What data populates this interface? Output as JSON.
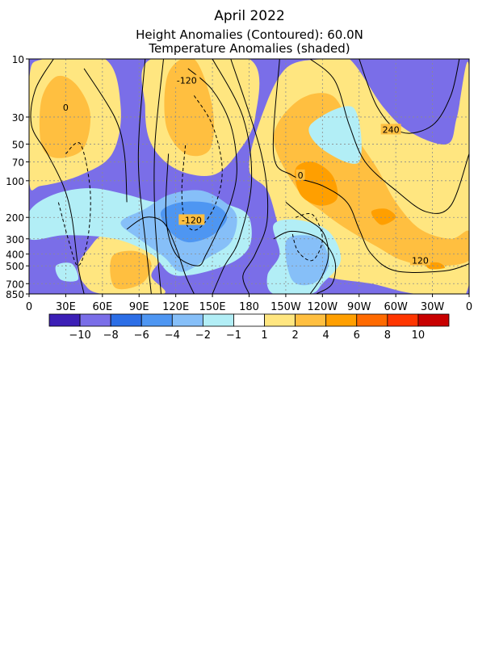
{
  "chart_data": {
    "type": "heatmap",
    "title": "April 2022",
    "subtitle": "Height Anomalies (Contoured): 60.0N",
    "subtitle2": "Temperature Anomalies (shaded)",
    "x_ticks": [
      "0",
      "30E",
      "60E",
      "90E",
      "120E",
      "150E",
      "180",
      "150W",
      "120W",
      "90W",
      "60W",
      "30W",
      "0"
    ],
    "x_range_deg_east": [
      0,
      360
    ],
    "y_ticks": [
      "10",
      "30",
      "50",
      "70",
      "100",
      "200",
      "300",
      "400",
      "500",
      "700",
      "850"
    ],
    "y_tick_values_hpa": [
      10,
      30,
      50,
      70,
      100,
      200,
      300,
      400,
      500,
      700,
      850
    ],
    "y_range_hpa": [
      10,
      850
    ],
    "y_scale": "log",
    "grid": true,
    "colorbar": {
      "labels": [
        "-10",
        "-8",
        "-6",
        "-4",
        "-2",
        "-1",
        "1",
        "2",
        "4",
        "6",
        "8",
        "10"
      ],
      "colors": [
        "#3c1fb6",
        "#7a6ee8",
        "#2c6ee6",
        "#4e96f2",
        "#86bff8",
        "#b2eef6",
        "#ffffff",
        "#ffe680",
        "#ffbf40",
        "#ff9f00",
        "#ff6a00",
        "#ff3600",
        "#c80000"
      ]
    },
    "contour_labels": [
      {
        "text": "0",
        "lon": 30,
        "p": 25
      },
      {
        "text": "-120",
        "lon": 129,
        "p": 15
      },
      {
        "text": "240",
        "lon": 296,
        "p": 38
      },
      {
        "text": "0",
        "lon": 222,
        "p": 90
      },
      {
        "text": "-120",
        "lon": 133,
        "p": 210
      },
      {
        "text": "120",
        "lon": 320,
        "p": 450
      }
    ],
    "temperature_regions": [
      {
        "category": 1,
        "points": [
          [
            0,
            10
          ],
          [
            360,
            10
          ],
          [
            360,
            850
          ],
          [
            0,
            850
          ]
        ]
      },
      {
        "category": 7,
        "points": [
          [
            0,
            15
          ],
          [
            12,
            10
          ],
          [
            62,
            10
          ],
          [
            75,
            25
          ],
          [
            68,
            60
          ],
          [
            42,
            90
          ],
          [
            10,
            110
          ],
          [
            0,
            100
          ]
        ]
      },
      {
        "category": 8,
        "points": [
          [
            10,
            22
          ],
          [
            22,
            14
          ],
          [
            38,
            16
          ],
          [
            50,
            28
          ],
          [
            44,
            55
          ],
          [
            22,
            65
          ],
          [
            10,
            50
          ]
        ]
      },
      {
        "category": 7,
        "points": [
          [
            100,
            10
          ],
          [
            180,
            10
          ],
          [
            185,
            30
          ],
          [
            170,
            60
          ],
          [
            150,
            90
          ],
          [
            120,
            80
          ],
          [
            100,
            50
          ],
          [
            95,
            25
          ]
        ]
      },
      {
        "category": 8,
        "points": [
          [
            114,
            13
          ],
          [
            135,
            10
          ],
          [
            150,
            25
          ],
          [
            148,
            55
          ],
          [
            128,
            60
          ],
          [
            112,
            35
          ]
        ]
      },
      {
        "category": 7,
        "points": [
          [
            190,
            30
          ],
          [
            210,
            12
          ],
          [
            240,
            10
          ],
          [
            262,
            10
          ],
          [
            290,
            25
          ],
          [
            312,
            40
          ],
          [
            342,
            50
          ],
          [
            350,
            30
          ],
          [
            360,
            12
          ],
          [
            360,
            700
          ],
          [
            320,
            850
          ],
          [
            280,
            700
          ],
          [
            240,
            600
          ],
          [
            215,
            400
          ],
          [
            205,
            250
          ],
          [
            195,
            120
          ],
          [
            180,
            80
          ]
        ]
      },
      {
        "category": 8,
        "points": [
          [
            200,
            45
          ],
          [
            220,
            22
          ],
          [
            248,
            20
          ],
          [
            265,
            40
          ],
          [
            285,
            80
          ],
          [
            300,
            150
          ],
          [
            320,
            250
          ],
          [
            345,
            300
          ],
          [
            360,
            260
          ],
          [
            360,
            450
          ],
          [
            330,
            500
          ],
          [
            305,
            450
          ],
          [
            285,
            350
          ],
          [
            260,
            250
          ],
          [
            240,
            180
          ],
          [
            220,
            120
          ]
        ]
      },
      {
        "category": 9,
        "points": [
          [
            218,
            80
          ],
          [
            232,
            70
          ],
          [
            248,
            90
          ],
          [
            252,
            140
          ],
          [
            238,
            160
          ],
          [
            222,
            130
          ]
        ]
      },
      {
        "category": 9,
        "points": [
          [
            280,
            180
          ],
          [
            292,
            170
          ],
          [
            300,
            200
          ],
          [
            288,
            230
          ]
        ]
      },
      {
        "category": 9,
        "points": [
          [
            325,
            480
          ],
          [
            335,
            470
          ],
          [
            340,
            520
          ],
          [
            328,
            530
          ]
        ]
      },
      {
        "category": 7,
        "points": [
          [
            60,
            280
          ],
          [
            80,
            260
          ],
          [
            100,
            300
          ],
          [
            110,
            400
          ],
          [
            100,
            600
          ],
          [
            110,
            850
          ],
          [
            60,
            850
          ],
          [
            45,
            700
          ],
          [
            40,
            500
          ],
          [
            50,
            350
          ]
        ]
      },
      {
        "category": 8,
        "points": [
          [
            68,
            420
          ],
          [
            88,
            380
          ],
          [
            100,
            480
          ],
          [
            92,
            700
          ],
          [
            70,
            750
          ]
        ]
      },
      {
        "category": 5,
        "points": [
          [
            0,
            180
          ],
          [
            20,
            130
          ],
          [
            50,
            115
          ],
          [
            80,
            130
          ],
          [
            105,
            150
          ],
          [
            135,
            140
          ],
          [
            165,
            160
          ],
          [
            180,
            200
          ],
          [
            180,
            350
          ],
          [
            160,
            500
          ],
          [
            120,
            600
          ],
          [
            100,
            400
          ],
          [
            70,
            300
          ],
          [
            30,
            280
          ],
          [
            0,
            300
          ]
        ]
      },
      {
        "category": 4,
        "points": [
          [
            75,
            220
          ],
          [
            95,
            170
          ],
          [
            115,
            130
          ],
          [
            140,
            120
          ],
          [
            160,
            150
          ],
          [
            170,
            200
          ],
          [
            165,
            320
          ],
          [
            148,
            420
          ],
          [
            125,
            560
          ],
          [
            110,
            420
          ],
          [
            90,
            300
          ]
        ]
      },
      {
        "category": 3,
        "points": [
          [
            108,
            180
          ],
          [
            125,
            150
          ],
          [
            150,
            155
          ],
          [
            162,
            200
          ],
          [
            150,
            280
          ],
          [
            130,
            320
          ],
          [
            115,
            260
          ]
        ]
      },
      {
        "category": 5,
        "points": [
          [
            200,
            230
          ],
          [
            220,
            210
          ],
          [
            245,
            260
          ],
          [
            255,
            450
          ],
          [
            240,
            700
          ],
          [
            230,
            850
          ],
          [
            200,
            850
          ],
          [
            195,
            600
          ],
          [
            205,
            400
          ]
        ]
      },
      {
        "category": 4,
        "points": [
          [
            210,
            320
          ],
          [
            225,
            280
          ],
          [
            240,
            320
          ],
          [
            245,
            500
          ],
          [
            232,
            700
          ],
          [
            215,
            650
          ]
        ]
      },
      {
        "category": 5,
        "points": [
          [
            22,
            500
          ],
          [
            35,
            480
          ],
          [
            40,
            650
          ],
          [
            26,
            650
          ]
        ]
      },
      {
        "category": 5,
        "points": [
          [
            230,
            35
          ],
          [
            265,
            25
          ],
          [
            270,
            70
          ],
          [
            240,
            55
          ]
        ]
      }
    ],
    "height_contours": [
      {
        "style": "solid",
        "points": [
          [
            20,
            10
          ],
          [
            5,
            18
          ],
          [
            2,
            35
          ],
          [
            15,
            60
          ],
          [
            28,
            110
          ],
          [
            35,
            200
          ],
          [
            40,
            500
          ],
          [
            45,
            850
          ]
        ]
      },
      {
        "style": "dashed",
        "points": [
          [
            30,
            60
          ],
          [
            42,
            50
          ],
          [
            50,
            120
          ],
          [
            48,
            300
          ],
          [
            40,
            500
          ],
          [
            32,
            300
          ],
          [
            24,
            150
          ]
        ]
      },
      {
        "style": "solid",
        "points": [
          [
            45,
            12
          ],
          [
            70,
            30
          ],
          [
            78,
            60
          ],
          [
            80,
            150
          ]
        ]
      },
      {
        "style": "solid",
        "points": [
          [
            95,
            10
          ],
          [
            90,
            40
          ],
          [
            90,
            100
          ],
          [
            95,
            300
          ],
          [
            100,
            850
          ]
        ]
      },
      {
        "style": "solid",
        "points": [
          [
            110,
            10
          ],
          [
            103,
            50
          ],
          [
            103,
            200
          ],
          [
            108,
            850
          ]
        ]
      },
      {
        "style": "solid",
        "points": [
          [
            130,
            12
          ],
          [
            150,
            18
          ],
          [
            165,
            35
          ],
          [
            170,
            80
          ],
          [
            165,
            150
          ],
          [
            155,
            250
          ],
          [
            145,
            400
          ],
          [
            138,
            500
          ],
          [
            120,
            400
          ],
          [
            112,
            200
          ],
          [
            114,
            60
          ]
        ]
      },
      {
        "style": "dashed",
        "points": [
          [
            135,
            20
          ],
          [
            150,
            35
          ],
          [
            158,
            80
          ],
          [
            152,
            160
          ],
          [
            138,
            250
          ],
          [
            128,
            220
          ],
          [
            125,
            120
          ],
          [
            128,
            50
          ]
        ]
      },
      {
        "style": "solid",
        "points": [
          [
            150,
            10
          ],
          [
            175,
            30
          ],
          [
            182,
            100
          ],
          [
            172,
            300
          ],
          [
            160,
            500
          ],
          [
            150,
            850
          ]
        ]
      },
      {
        "style": "solid",
        "points": [
          [
            80,
            250
          ],
          [
            95,
            200
          ],
          [
            110,
            220
          ],
          [
            120,
            350
          ],
          [
            128,
            600
          ],
          [
            135,
            850
          ]
        ]
      },
      {
        "style": "solid",
        "points": [
          [
            165,
            10
          ],
          [
            190,
            60
          ],
          [
            195,
            200
          ],
          [
            185,
            400
          ],
          [
            175,
            600
          ],
          [
            180,
            850
          ]
        ]
      },
      {
        "style": "solid",
        "points": [
          [
            205,
            10
          ],
          [
            200,
            60
          ],
          [
            215,
            90
          ],
          [
            240,
            110
          ],
          [
            260,
            150
          ],
          [
            270,
            250
          ],
          [
            280,
            400
          ],
          [
            300,
            550
          ],
          [
            340,
            550
          ],
          [
            360,
            480
          ]
        ]
      },
      {
        "style": "solid",
        "points": [
          [
            230,
            10
          ],
          [
            250,
            15
          ],
          [
            262,
            35
          ],
          [
            275,
            70
          ],
          [
            300,
            120
          ],
          [
            325,
            180
          ],
          [
            345,
            160
          ],
          [
            360,
            60
          ]
        ]
      },
      {
        "style": "solid",
        "points": [
          [
            270,
            10
          ],
          [
            285,
            25
          ],
          [
            305,
            40
          ],
          [
            330,
            35
          ],
          [
            345,
            20
          ],
          [
            352,
            10
          ]
        ]
      },
      {
        "style": "solid",
        "points": [
          [
            210,
            150
          ],
          [
            225,
            200
          ],
          [
            240,
            260
          ],
          [
            245,
            400
          ],
          [
            240,
            600
          ],
          [
            230,
            850
          ]
        ]
      },
      {
        "style": "dashed",
        "points": [
          [
            218,
            200
          ],
          [
            232,
            190
          ],
          [
            240,
            300
          ],
          [
            232,
            450
          ],
          [
            220,
            380
          ],
          [
            215,
            260
          ]
        ]
      },
      {
        "style": "solid",
        "points": [
          [
            200,
            300
          ],
          [
            215,
            260
          ],
          [
            238,
            300
          ],
          [
            250,
            450
          ],
          [
            248,
            700
          ],
          [
            235,
            850
          ]
        ]
      }
    ]
  }
}
